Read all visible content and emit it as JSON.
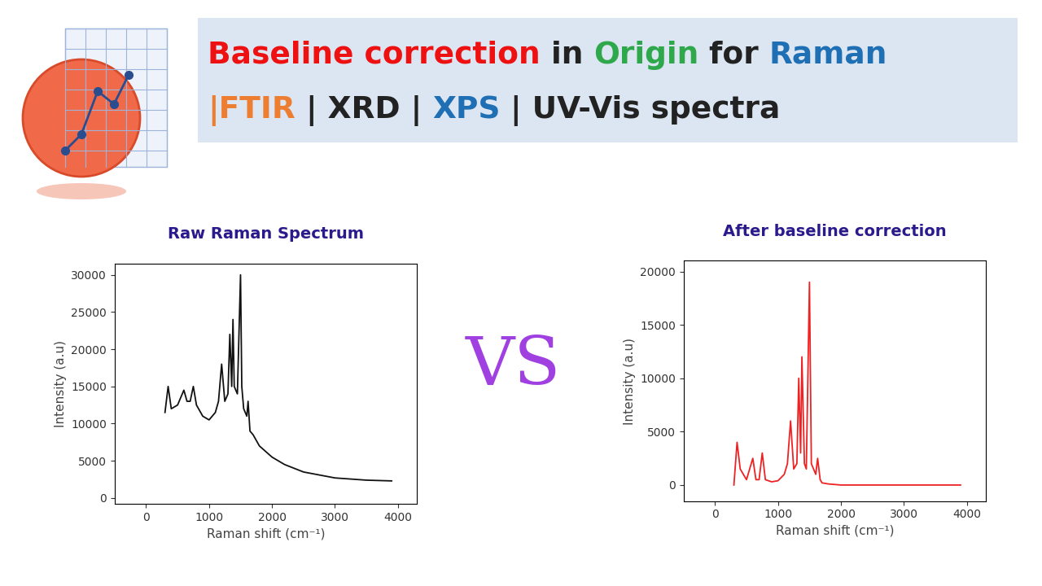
{
  "header": {
    "lines": [
      [
        {
          "text": "Baseline correction",
          "color": "#ee1111"
        },
        {
          "text": " in ",
          "color": "#222222"
        },
        {
          "text": "Origin",
          "color": "#2ea84a"
        },
        {
          "text": " for ",
          "color": "#222222"
        },
        {
          "text": "Raman",
          "color": "#1f6fb5"
        }
      ],
      [
        {
          "text": "|FTIR",
          "color": "#ed7d31"
        },
        {
          "text": " | XRD | ",
          "color": "#222222"
        },
        {
          "text": "XPS",
          "color": "#1f6fb5"
        },
        {
          "text": " | UV-Vis spectra",
          "color": "#222222"
        }
      ]
    ],
    "vs": "VS"
  },
  "chart_data": [
    {
      "type": "line",
      "title": "Raw Raman Spectrum",
      "x_label": "Raman shift (cm⁻¹)",
      "y_label": "Intensity (a.u)",
      "color": "#111111",
      "x": [
        300,
        350,
        400,
        500,
        600,
        650,
        700,
        750,
        800,
        900,
        1000,
        1100,
        1150,
        1200,
        1250,
        1300,
        1330,
        1360,
        1380,
        1400,
        1450,
        1500,
        1520,
        1550,
        1600,
        1620,
        1650,
        1700,
        1800,
        2000,
        2200,
        2500,
        3000,
        3500,
        3900
      ],
      "values": [
        11500,
        15000,
        12000,
        12500,
        14500,
        13000,
        13000,
        15000,
        12500,
        11000,
        10500,
        11500,
        13000,
        18000,
        13000,
        14000,
        22000,
        15000,
        24000,
        15000,
        14000,
        30000,
        15000,
        12000,
        11000,
        13000,
        9000,
        8500,
        7000,
        5500,
        4500,
        3500,
        2700,
        2400,
        2300
      ],
      "xlim": [
        -500,
        4300
      ],
      "xticks": [
        0,
        1000,
        2000,
        3000,
        4000
      ],
      "ylim": [
        -800,
        31500
      ],
      "yticks": [
        0,
        5000,
        10000,
        15000,
        20000,
        25000,
        30000
      ]
    },
    {
      "type": "line",
      "title": "After baseline correction",
      "x_label": "Raman shift (cm⁻¹)",
      "y_label": "Intensity (a.u)",
      "color": "#ee2222",
      "x": [
        300,
        350,
        400,
        500,
        600,
        650,
        700,
        750,
        800,
        900,
        1000,
        1100,
        1150,
        1200,
        1250,
        1300,
        1330,
        1360,
        1380,
        1420,
        1450,
        1500,
        1530,
        1600,
        1630,
        1670,
        1700,
        1800,
        2000,
        3900
      ],
      "values": [
        0,
        4000,
        1500,
        500,
        2500,
        500,
        500,
        3000,
        500,
        300,
        400,
        1000,
        2000,
        6000,
        1500,
        2000,
        10000,
        3000,
        12000,
        2000,
        1500,
        19000,
        2000,
        1000,
        2500,
        500,
        200,
        100,
        0,
        0
      ],
      "xlim": [
        -500,
        4300
      ],
      "xticks": [
        0,
        1000,
        2000,
        3000,
        4000
      ],
      "ylim": [
        -1500,
        21000
      ],
      "yticks": [
        0,
        5000,
        10000,
        15000,
        20000
      ]
    }
  ]
}
